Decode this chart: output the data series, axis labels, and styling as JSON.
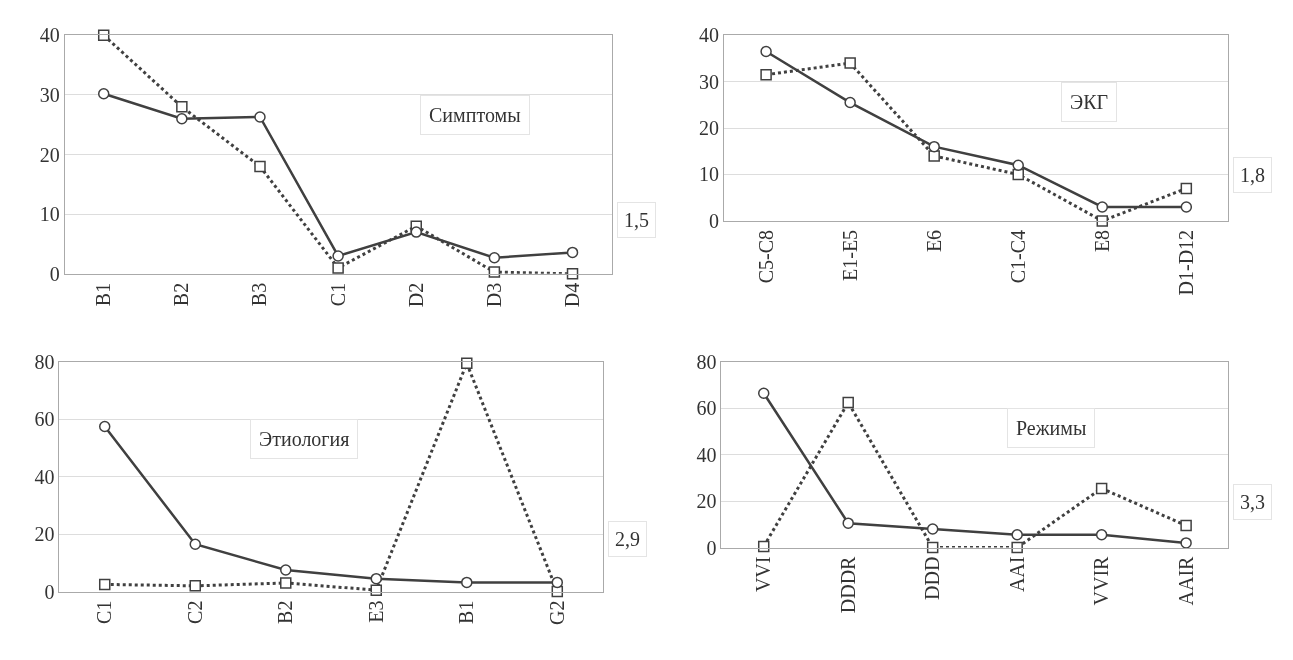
{
  "chart_data": [
    {
      "type": "line",
      "title": "Симптомы",
      "categories": [
        "B1",
        "B2",
        "B3",
        "C1",
        "D2",
        "D3",
        "D4"
      ],
      "ylim": [
        0,
        40
      ],
      "yticks": [
        0,
        10,
        20,
        30,
        40
      ],
      "grid": "y",
      "annotations": [
        "1,5"
      ],
      "series": [
        {
          "color": "#404040",
          "marker": "circle",
          "line_style": "solid",
          "values": [
            30.2,
            26,
            26.3,
            3,
            7,
            2.7,
            3.6
          ]
        },
        {
          "color": "#404040",
          "marker": "square",
          "line_style": "dotted",
          "values": [
            40,
            28,
            18,
            1,
            8,
            0.3,
            0
          ]
        }
      ]
    },
    {
      "type": "line",
      "title": "ЭКГ",
      "categories": [
        "C5-C8",
        "E1-E5",
        "E6",
        "C1-C4",
        "E8",
        "D1-D12"
      ],
      "ylim": [
        0,
        40
      ],
      "yticks": [
        0,
        10,
        20,
        30,
        40
      ],
      "grid": "y",
      "annotations": [
        "1,8"
      ],
      "series": [
        {
          "color": "#404040",
          "marker": "circle",
          "line_style": "solid",
          "values": [
            36.5,
            25.5,
            16,
            12,
            3,
            3
          ]
        },
        {
          "color": "#404040",
          "marker": "square",
          "line_style": "dotted",
          "values": [
            31.5,
            34,
            14,
            10,
            0,
            7
          ]
        }
      ]
    },
    {
      "type": "line",
      "title": "Этиология",
      "categories": [
        "C1",
        "C2",
        "B2",
        "E3",
        "B1",
        "G2"
      ],
      "ylim": [
        0,
        80
      ],
      "yticks": [
        0,
        20,
        40,
        60,
        80
      ],
      "grid": "y",
      "annotations": [
        "2,9"
      ],
      "series": [
        {
          "color": "#404040",
          "marker": "circle",
          "line_style": "solid",
          "values": [
            57.5,
            16.5,
            7.5,
            4.5,
            3.2,
            3.2
          ]
        },
        {
          "color": "#404040",
          "marker": "square",
          "line_style": "dotted",
          "values": [
            2.5,
            2,
            3,
            0.5,
            79.5,
            0
          ]
        }
      ]
    },
    {
      "type": "line",
      "title": "Режимы",
      "categories": [
        "VVI",
        "DDDR",
        "DDD",
        "AAI",
        "VVIR",
        "AAIR"
      ],
      "ylim": [
        0,
        80
      ],
      "yticks": [
        0,
        20,
        40,
        60,
        80
      ],
      "grid": "y",
      "annotations": [
        "3,3"
      ],
      "series": [
        {
          "color": "#404040",
          "marker": "circle",
          "line_style": "solid",
          "values": [
            66.5,
            10.5,
            8,
            5.5,
            5.5,
            2
          ]
        },
        {
          "color": "#404040",
          "marker": "square",
          "line_style": "dotted",
          "values": [
            0.5,
            62.5,
            0,
            0,
            25.5,
            9.5
          ]
        }
      ]
    }
  ]
}
